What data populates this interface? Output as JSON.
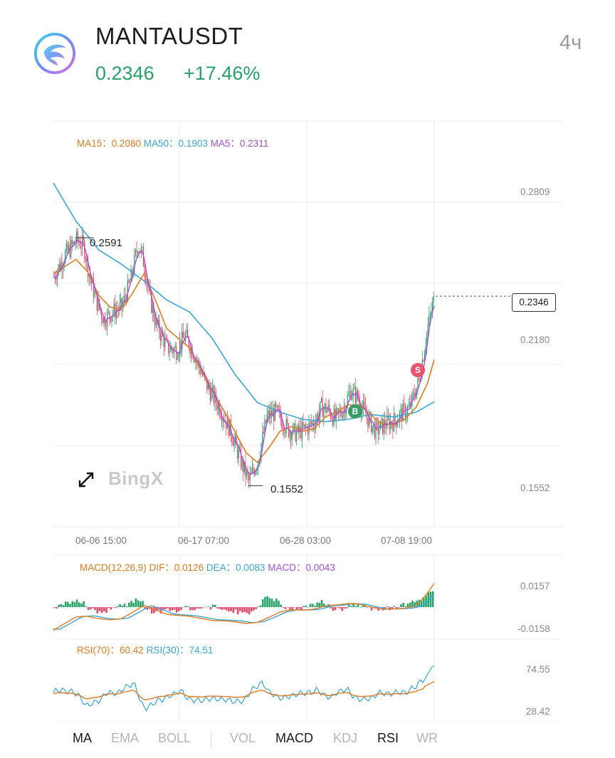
{
  "header": {
    "symbol": "MANTAUSDT",
    "price": "0.2346",
    "change": "+17.46%",
    "timeframe": "4ч",
    "logo_icon": "manta-logo"
  },
  "colors": {
    "up": "#26a269",
    "down": "#e8466a",
    "ma15": "#e07b20",
    "ma50": "#3aa6d8",
    "ma5": "#a64fd6"
  },
  "main_chart": {
    "legend": {
      "ma15": "MA15：0.2080",
      "ma50": "MA50：0.1903",
      "ma5": "MA5：0.2311"
    },
    "y_labels": [
      "0.2809",
      "0.2180",
      "0.1552"
    ],
    "current_price": "0.2346",
    "high_label": "0.2591",
    "low_label": "0.1552",
    "watermark": "BingX",
    "buy_marker": "B",
    "sell_marker": "S"
  },
  "time_labels": [
    "06-06 15:00",
    "06-17 07:00",
    "06-28 03:00",
    "07-08 19:00"
  ],
  "macd": {
    "legend": {
      "title": "MACD(12,26,9)",
      "dif": "DIF：0.0126",
      "dea": "DEA：0.0083",
      "macd": "MACD：0.0043"
    },
    "y_labels": [
      "0.0157",
      "-0.0158"
    ]
  },
  "rsi": {
    "legend": {
      "rsi70": "RSI(70)：60.42",
      "rsi30": "RSI(30)：74.51"
    },
    "y_labels": [
      "74.55",
      "28.42"
    ]
  },
  "tabs": {
    "ma": "MA",
    "ema": "EMA",
    "boll": "BOLL",
    "vol": "VOL",
    "macd": "MACD",
    "kdj": "KDJ",
    "rsi": "RSI",
    "wr": "WR"
  },
  "chart_data": {
    "type": "candlestick",
    "symbol": "MANTAUSDT",
    "interval": "4ч",
    "x_ticks": [
      "06-06 15:00",
      "06-17 07:00",
      "06-28 03:00",
      "07-08 19:00"
    ],
    "ylim": [
      0.138,
      0.308
    ],
    "price_ticks": [
      0.2809,
      0.218,
      0.1552
    ],
    "close_path": [
      [
        0,
        0.243
      ],
      [
        10,
        0.252
      ],
      [
        20,
        0.258
      ],
      [
        26,
        0.256
      ],
      [
        32,
        0.242
      ],
      [
        38,
        0.232
      ],
      [
        44,
        0.225
      ],
      [
        52,
        0.228
      ],
      [
        60,
        0.23
      ],
      [
        68,
        0.242
      ],
      [
        74,
        0.256
      ],
      [
        78,
        0.252
      ],
      [
        84,
        0.235
      ],
      [
        90,
        0.223
      ],
      [
        100,
        0.213
      ],
      [
        108,
        0.212
      ],
      [
        116,
        0.218
      ],
      [
        124,
        0.21
      ],
      [
        134,
        0.198
      ],
      [
        146,
        0.188
      ],
      [
        156,
        0.178
      ],
      [
        166,
        0.164
      ],
      [
        172,
        0.157
      ],
      [
        180,
        0.166
      ],
      [
        188,
        0.184
      ],
      [
        196,
        0.186
      ],
      [
        206,
        0.179
      ],
      [
        214,
        0.177
      ],
      [
        222,
        0.179
      ],
      [
        230,
        0.182
      ],
      [
        236,
        0.188
      ],
      [
        242,
        0.187
      ],
      [
        248,
        0.183
      ],
      [
        256,
        0.188
      ],
      [
        262,
        0.195
      ],
      [
        268,
        0.192
      ],
      [
        276,
        0.184
      ],
      [
        284,
        0.178
      ],
      [
        292,
        0.181
      ],
      [
        300,
        0.182
      ],
      [
        306,
        0.185
      ],
      [
        314,
        0.188
      ],
      [
        322,
        0.199
      ],
      [
        330,
        0.222
      ],
      [
        336,
        0.2346
      ]
    ],
    "ma15_path": [
      [
        0,
        0.244
      ],
      [
        10,
        0.247
      ],
      [
        20,
        0.25
      ],
      [
        30,
        0.245
      ],
      [
        40,
        0.235
      ],
      [
        50,
        0.23
      ],
      [
        60,
        0.229
      ],
      [
        70,
        0.236
      ],
      [
        80,
        0.244
      ],
      [
        90,
        0.233
      ],
      [
        100,
        0.221
      ],
      [
        110,
        0.217
      ],
      [
        120,
        0.213
      ],
      [
        130,
        0.204
      ],
      [
        140,
        0.195
      ],
      [
        150,
        0.187
      ],
      [
        160,
        0.178
      ],
      [
        170,
        0.169
      ],
      [
        180,
        0.165
      ],
      [
        190,
        0.171
      ],
      [
        200,
        0.178
      ],
      [
        210,
        0.18
      ],
      [
        220,
        0.178
      ],
      [
        230,
        0.179
      ],
      [
        240,
        0.184
      ],
      [
        250,
        0.186
      ],
      [
        260,
        0.189
      ],
      [
        270,
        0.189
      ],
      [
        280,
        0.185
      ],
      [
        290,
        0.181
      ],
      [
        300,
        0.181
      ],
      [
        310,
        0.183
      ],
      [
        320,
        0.188
      ],
      [
        330,
        0.198
      ],
      [
        336,
        0.208
      ]
    ],
    "ma50_path": [
      [
        0,
        0.282
      ],
      [
        20,
        0.266
      ],
      [
        40,
        0.254
      ],
      [
        60,
        0.248
      ],
      [
        80,
        0.241
      ],
      [
        100,
        0.233
      ],
      [
        120,
        0.228
      ],
      [
        140,
        0.217
      ],
      [
        160,
        0.202
      ],
      [
        180,
        0.19
      ],
      [
        200,
        0.186
      ],
      [
        220,
        0.183
      ],
      [
        240,
        0.182
      ],
      [
        260,
        0.183
      ],
      [
        280,
        0.185
      ],
      [
        300,
        0.184
      ],
      [
        320,
        0.186
      ],
      [
        336,
        0.1903
      ]
    ],
    "high": {
      "value": 0.2591,
      "label": "0.2591"
    },
    "low": {
      "value": 0.1552,
      "label": "0.1552"
    },
    "last": 0.2346,
    "change_pct": 17.46,
    "ma": {
      "MA15": 0.208,
      "MA50": 0.1903,
      "MA5": 0.2311
    },
    "markers": [
      {
        "label": "B",
        "bar": 232,
        "price": 0.1855
      },
      {
        "label": "S",
        "bar": 326,
        "price": 0.215
      }
    ],
    "macd": {
      "params": "12,26,9",
      "DIF": 0.0126,
      "DEA": 0.0083,
      "MACD": 0.0043,
      "ylim": [
        -0.02,
        0.02
      ],
      "y_ticks": [
        0.0157,
        -0.0158
      ]
    },
    "rsi": {
      "RSI70": 60.42,
      "RSI30": 74.51,
      "ylim": [
        22,
        80
      ],
      "y_ticks": [
        74.55,
        28.42
      ]
    }
  }
}
